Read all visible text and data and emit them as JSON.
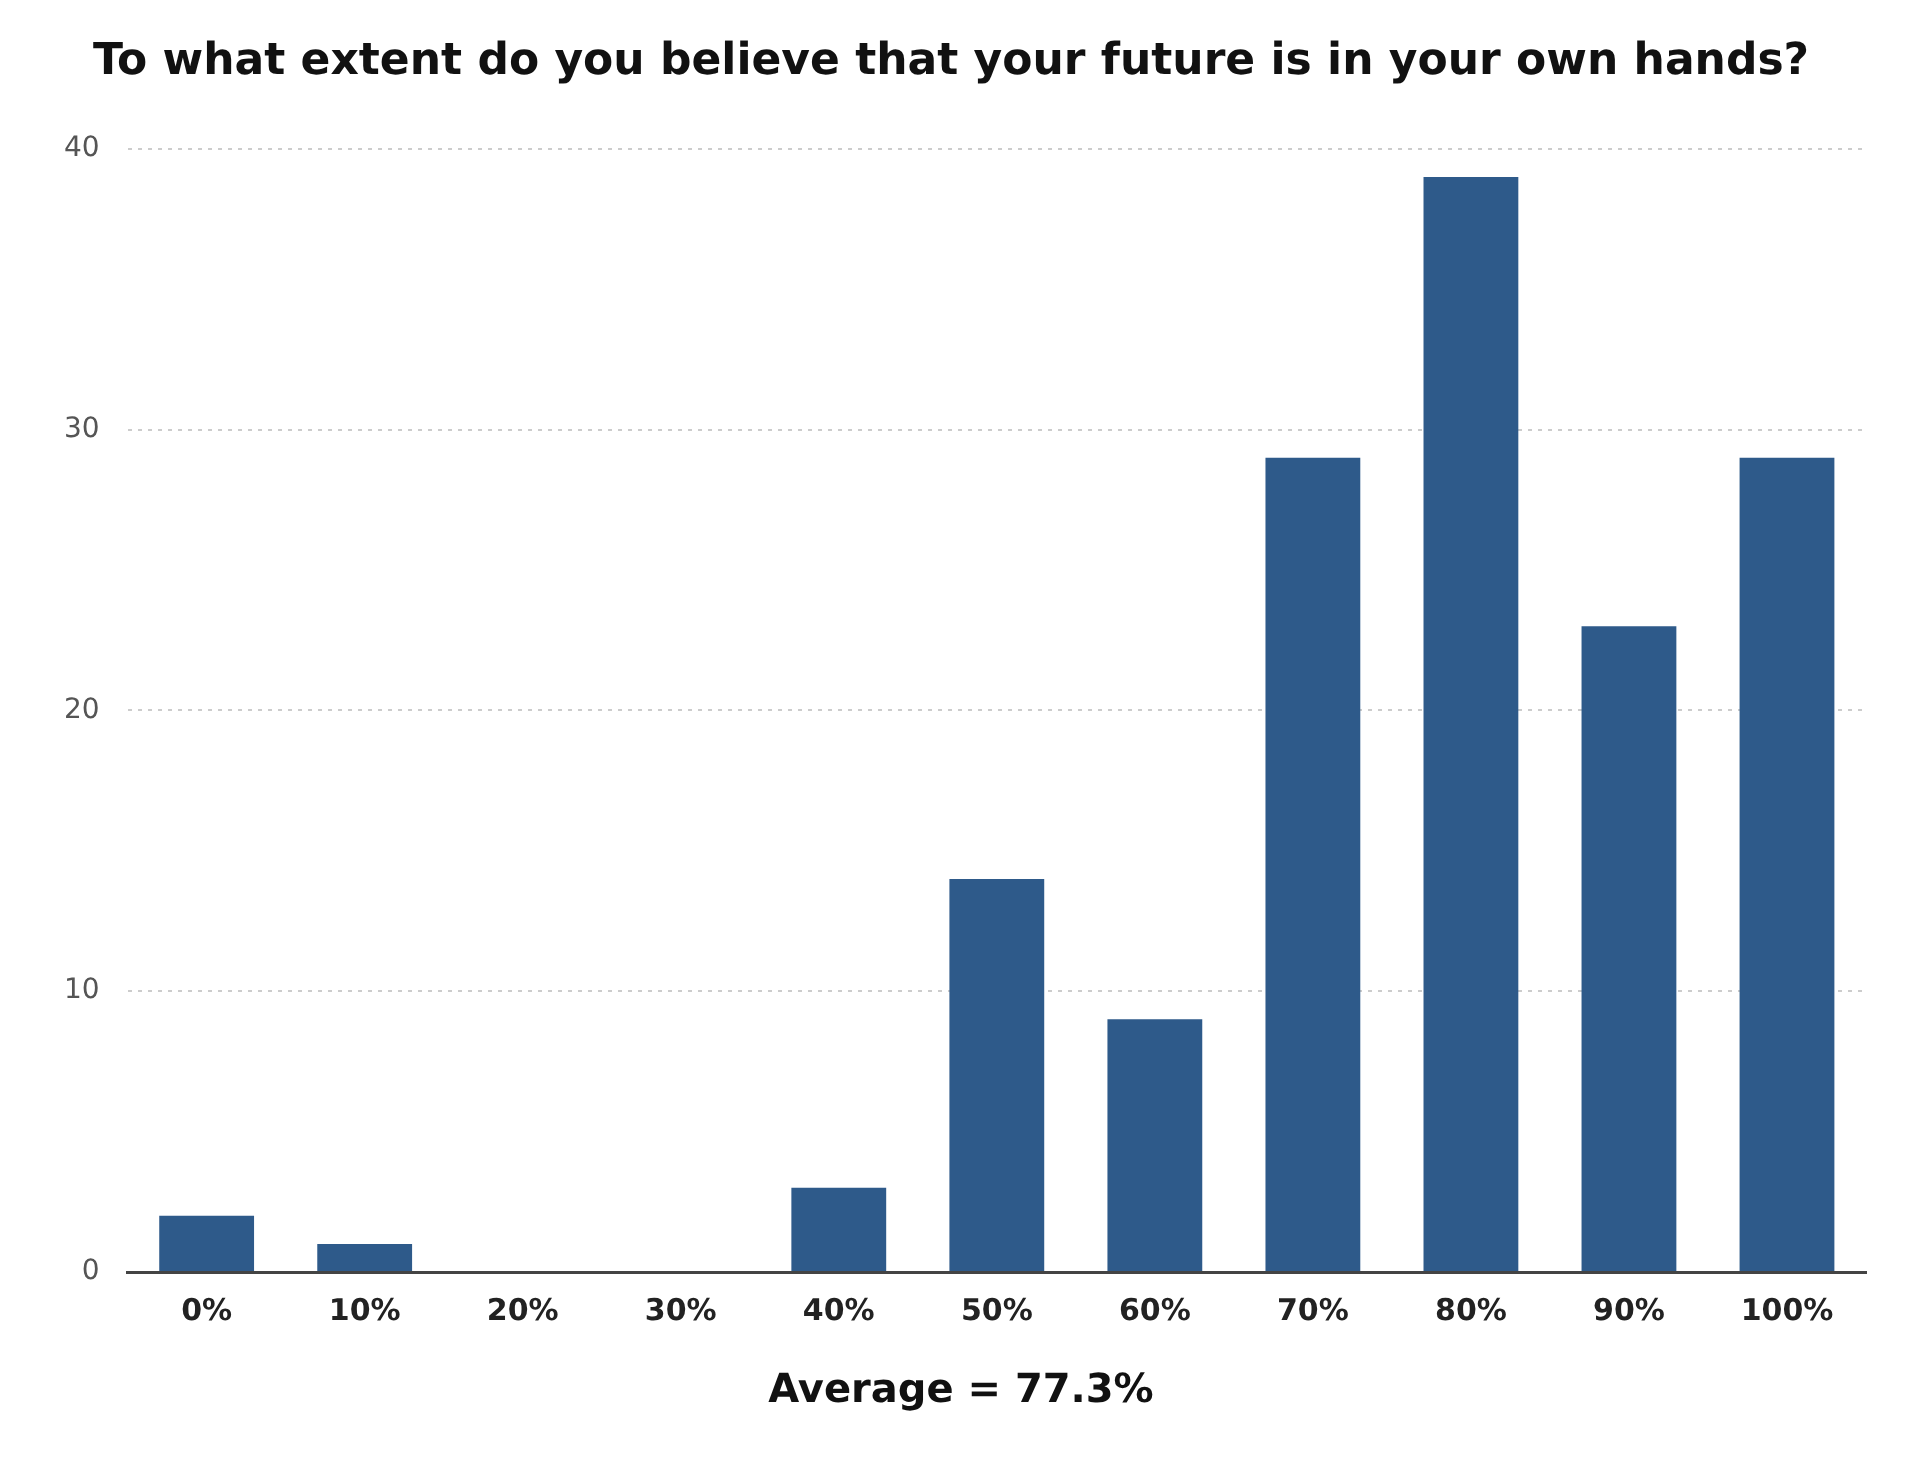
{
  "chart_data": {
    "type": "bar",
    "title": "To what extent do you believe that your future is in your own hands?",
    "categories": [
      "0%",
      "10%",
      "20%",
      "30%",
      "40%",
      "50%",
      "60%",
      "70%",
      "80%",
      "90%",
      "100%"
    ],
    "values": [
      2,
      1,
      0,
      0,
      3,
      14,
      9,
      29,
      39,
      23,
      29
    ],
    "color": "#2e5a8a",
    "ylim": [
      0,
      40
    ],
    "yticks": [
      0,
      10,
      20,
      30,
      40
    ],
    "grid": "y",
    "legend": false,
    "annotations": [
      "Average = 77.3%"
    ]
  }
}
